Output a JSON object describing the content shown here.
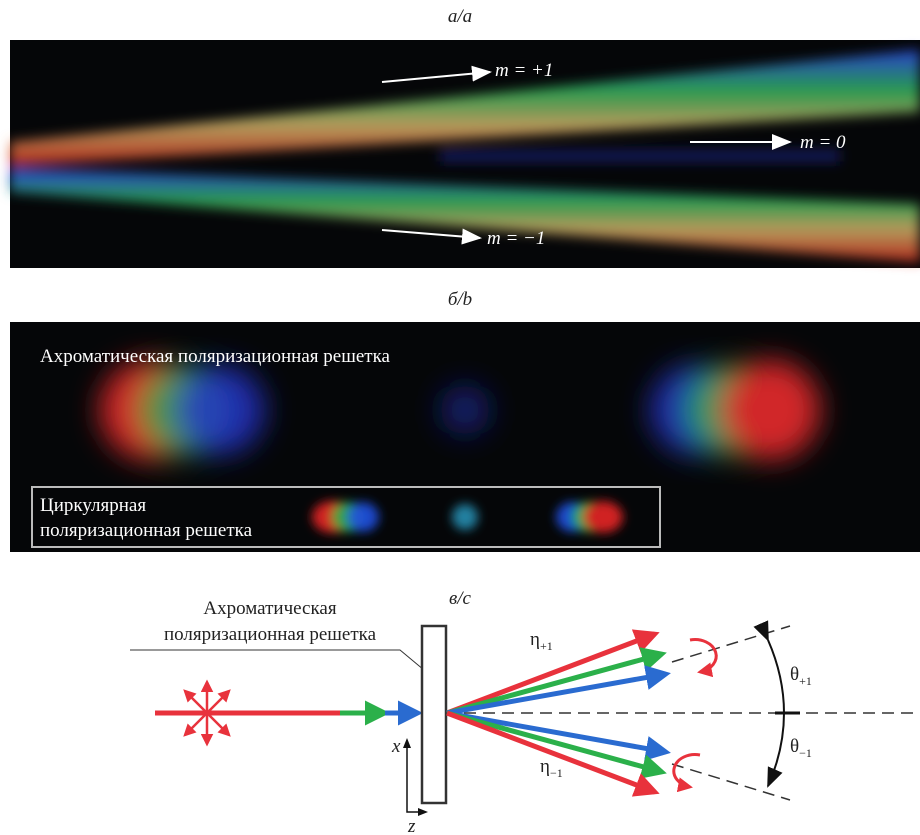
{
  "panel_a": {
    "label": "а/a",
    "annotations": [
      "m = +1",
      "m = 0",
      "m = −1"
    ]
  },
  "panel_b": {
    "label": "б/b",
    "title": "Ахроматическая поляризационная решетка",
    "inset": [
      "Циркулярная",
      "поляризационная решетка"
    ]
  },
  "panel_c": {
    "label": "в/c",
    "grating": [
      "Ахроматическая",
      "поляризационная решетка"
    ],
    "eta_plus": {
      "symbol": "η",
      "subscript": "+1"
    },
    "eta_minus": {
      "symbol": "η",
      "subscript": "−1"
    },
    "theta_plus": {
      "symbol": "θ",
      "subscript": "+1"
    },
    "theta_minus": {
      "symbol": "θ",
      "subscript": "−1"
    },
    "axes": [
      "x",
      "z"
    ]
  }
}
